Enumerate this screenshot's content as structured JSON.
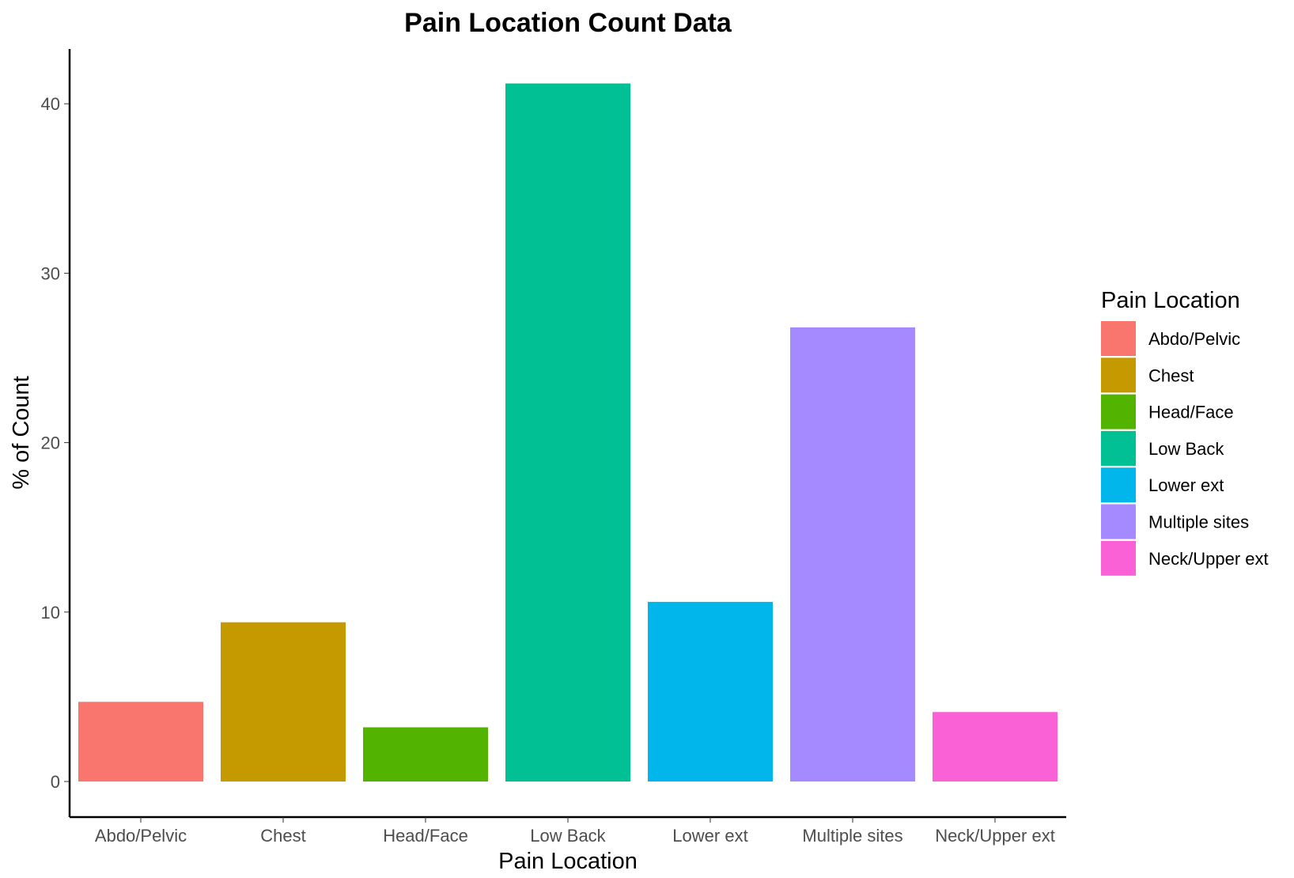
{
  "chart_data": {
    "type": "bar",
    "title": "Pain Location Count Data",
    "xlabel": "Pain Location",
    "ylabel": "% of Count",
    "categories": [
      "Abdo/Pelvic",
      "Chest",
      "Head/Face",
      "Low Back",
      "Lower ext",
      "Multiple sites",
      "Neck/Upper ext"
    ],
    "values": [
      4.7,
      9.4,
      3.2,
      41.2,
      10.6,
      26.8,
      4.1
    ],
    "colors": [
      "#F8766D",
      "#C49A00",
      "#53B400",
      "#00C094",
      "#00B6EB",
      "#A58AFF",
      "#FB61D7"
    ],
    "ylim": [
      0,
      43
    ],
    "yticks": [
      0,
      10,
      20,
      30,
      40
    ],
    "grid": false,
    "legend": {
      "title": "Pain Location",
      "position": "right",
      "entries": [
        "Abdo/Pelvic",
        "Chest",
        "Head/Face",
        "Low Back",
        "Lower ext",
        "Multiple sites",
        "Neck/Upper ext"
      ]
    }
  }
}
